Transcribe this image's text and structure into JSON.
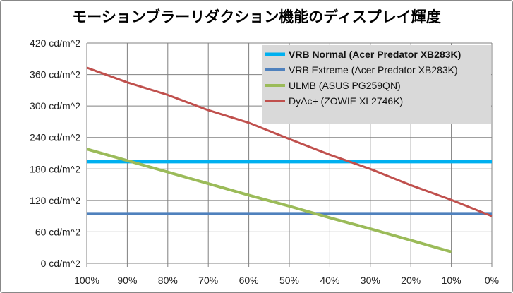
{
  "chart_data": {
    "type": "line",
    "title": "モーションブラーリダクション機能のディスプレイ輝度",
    "x": [
      "100%",
      "90%",
      "80%",
      "70%",
      "60%",
      "50%",
      "40%",
      "30%",
      "20%",
      "10%",
      "0%"
    ],
    "y_ticks": [
      "0 cd/m^2",
      "60 cd/m^2",
      "120 cd/m^2",
      "180 cd/m^2",
      "240 cd/m^2",
      "300 cd/m^2",
      "360 cd/m^2",
      "420 cd/m^2"
    ],
    "ylim": [
      0,
      420
    ],
    "grid": true,
    "legend_position": "top-right",
    "series": [
      {
        "name": "VRB Normal (Acer Predator XB283K)",
        "color": "#00b0f0",
        "bold": true,
        "width": 5,
        "values": [
          194,
          194,
          194,
          194,
          194,
          194,
          194,
          194,
          194,
          194,
          194
        ]
      },
      {
        "name": "VRB Extreme (Acer Predator XB283K)",
        "color": "#4f81bd",
        "bold": false,
        "width": 4,
        "values": [
          95,
          95,
          95,
          95,
          95,
          95,
          95,
          95,
          95,
          95,
          95
        ]
      },
      {
        "name": "ULMB (ASUS PG259QN)",
        "color": "#9bbb59",
        "bold": false,
        "width": 4,
        "values": [
          218,
          196,
          174,
          152,
          130,
          109,
          87,
          66,
          44,
          22,
          null
        ]
      },
      {
        "name": "DyAc+ (ZOWIE XL2746K)",
        "color": "#c0504d",
        "bold": false,
        "width": 3,
        "values": [
          373,
          345,
          321,
          292,
          268,
          237,
          207,
          180,
          149,
          121,
          90
        ]
      }
    ]
  }
}
